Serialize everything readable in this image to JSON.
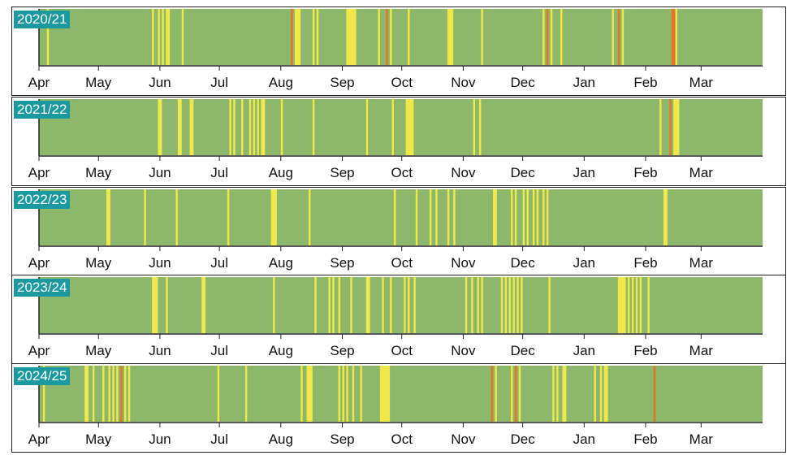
{
  "chart_data": {
    "type": "heatmap",
    "month_labels": [
      "Apr",
      "May",
      "Jun",
      "Jul",
      "Aug",
      "Sep",
      "Oct",
      "Nov",
      "Dec",
      "Jan",
      "Feb",
      "Mar"
    ],
    "colors": {
      "green": "#8db76a",
      "yellow": "#f0e84a",
      "orange": "#e8742a",
      "panel_bg": "#ffffff"
    },
    "panels": [
      {
        "year": "2020/21",
        "events": [
          {
            "day": 4,
            "level": "yellow",
            "days": 1
          },
          {
            "day": 57,
            "level": "yellow",
            "days": 1
          },
          {
            "day": 60,
            "level": "yellow",
            "days": 1
          },
          {
            "day": 62,
            "level": "yellow",
            "days": 1
          },
          {
            "day": 64,
            "level": "yellow",
            "days": 2
          },
          {
            "day": 72,
            "level": "yellow",
            "days": 1
          },
          {
            "day": 127,
            "level": "orange",
            "days": 1
          },
          {
            "day": 129,
            "level": "yellow",
            "days": 3
          },
          {
            "day": 138,
            "level": "yellow",
            "days": 1
          },
          {
            "day": 140,
            "level": "yellow",
            "days": 1
          },
          {
            "day": 155,
            "level": "yellow",
            "days": 5
          },
          {
            "day": 171,
            "level": "yellow",
            "days": 1
          },
          {
            "day": 175,
            "level": "orange",
            "days": 1
          },
          {
            "day": 177,
            "level": "yellow",
            "days": 1
          },
          {
            "day": 186,
            "level": "yellow",
            "days": 1
          },
          {
            "day": 206,
            "level": "yellow",
            "days": 3
          },
          {
            "day": 223,
            "level": "yellow",
            "days": 1
          },
          {
            "day": 254,
            "level": "yellow",
            "days": 1
          },
          {
            "day": 256,
            "level": "orange",
            "days": 1
          },
          {
            "day": 258,
            "level": "yellow",
            "days": 1
          },
          {
            "day": 263,
            "level": "yellow",
            "days": 1
          },
          {
            "day": 289,
            "level": "yellow",
            "days": 1
          },
          {
            "day": 292,
            "level": "orange",
            "days": 1
          },
          {
            "day": 294,
            "level": "yellow",
            "days": 1
          },
          {
            "day": 319,
            "level": "orange",
            "days": 2
          },
          {
            "day": 321,
            "level": "yellow",
            "days": 1
          }
        ]
      },
      {
        "year": "2021/22",
        "events": [
          {
            "day": 60,
            "level": "yellow",
            "days": 2
          },
          {
            "day": 70,
            "level": "yellow",
            "days": 2
          },
          {
            "day": 76,
            "level": "yellow",
            "days": 2
          },
          {
            "day": 96,
            "level": "yellow",
            "days": 1
          },
          {
            "day": 98,
            "level": "yellow",
            "days": 1
          },
          {
            "day": 102,
            "level": "yellow",
            "days": 1
          },
          {
            "day": 106,
            "level": "yellow",
            "days": 1
          },
          {
            "day": 108,
            "level": "yellow",
            "days": 1
          },
          {
            "day": 110,
            "level": "yellow",
            "days": 1
          },
          {
            "day": 112,
            "level": "yellow",
            "days": 2
          },
          {
            "day": 122,
            "level": "yellow",
            "days": 1
          },
          {
            "day": 138,
            "level": "yellow",
            "days": 1
          },
          {
            "day": 165,
            "level": "yellow",
            "days": 1
          },
          {
            "day": 178,
            "level": "yellow",
            "days": 1
          },
          {
            "day": 185,
            "level": "yellow",
            "days": 4
          },
          {
            "day": 219,
            "level": "yellow",
            "days": 1
          },
          {
            "day": 222,
            "level": "yellow",
            "days": 1
          },
          {
            "day": 313,
            "level": "yellow",
            "days": 1
          },
          {
            "day": 318,
            "level": "orange",
            "days": 1
          },
          {
            "day": 320,
            "level": "yellow",
            "days": 3
          }
        ]
      },
      {
        "year": "2022/23",
        "events": [
          {
            "day": 34,
            "level": "yellow",
            "days": 2
          },
          {
            "day": 53,
            "level": "yellow",
            "days": 1
          },
          {
            "day": 69,
            "level": "yellow",
            "days": 1
          },
          {
            "day": 95,
            "level": "yellow",
            "days": 1
          },
          {
            "day": 117,
            "level": "yellow",
            "days": 3
          },
          {
            "day": 136,
            "level": "yellow",
            "days": 1
          },
          {
            "day": 179,
            "level": "yellow",
            "days": 1
          },
          {
            "day": 190,
            "level": "yellow",
            "days": 1
          },
          {
            "day": 197,
            "level": "yellow",
            "days": 1
          },
          {
            "day": 200,
            "level": "yellow",
            "days": 1
          },
          {
            "day": 206,
            "level": "yellow",
            "days": 1
          },
          {
            "day": 209,
            "level": "yellow",
            "days": 1
          },
          {
            "day": 229,
            "level": "yellow",
            "days": 2
          },
          {
            "day": 238,
            "level": "yellow",
            "days": 1
          },
          {
            "day": 240,
            "level": "yellow",
            "days": 1
          },
          {
            "day": 244,
            "level": "yellow",
            "days": 1
          },
          {
            "day": 246,
            "level": "yellow",
            "days": 1
          },
          {
            "day": 249,
            "level": "yellow",
            "days": 1
          },
          {
            "day": 251,
            "level": "yellow",
            "days": 1
          },
          {
            "day": 254,
            "level": "yellow",
            "days": 1
          },
          {
            "day": 256,
            "level": "yellow",
            "days": 1
          },
          {
            "day": 315,
            "level": "yellow",
            "days": 2
          }
        ]
      },
      {
        "year": "2023/24",
        "events": [
          {
            "day": 57,
            "level": "yellow",
            "days": 3
          },
          {
            "day": 64,
            "level": "yellow",
            "days": 1
          },
          {
            "day": 82,
            "level": "yellow",
            "days": 2
          },
          {
            "day": 118,
            "level": "yellow",
            "days": 1
          },
          {
            "day": 139,
            "level": "yellow",
            "days": 1
          },
          {
            "day": 146,
            "level": "yellow",
            "days": 1
          },
          {
            "day": 148,
            "level": "yellow",
            "days": 1
          },
          {
            "day": 151,
            "level": "yellow",
            "days": 1
          },
          {
            "day": 157,
            "level": "yellow",
            "days": 1
          },
          {
            "day": 165,
            "level": "yellow",
            "days": 2
          },
          {
            "day": 173,
            "level": "yellow",
            "days": 1
          },
          {
            "day": 177,
            "level": "yellow",
            "days": 1
          },
          {
            "day": 184,
            "level": "yellow",
            "days": 1
          },
          {
            "day": 186,
            "level": "yellow",
            "days": 1
          },
          {
            "day": 189,
            "level": "yellow",
            "days": 1
          },
          {
            "day": 215,
            "level": "yellow",
            "days": 1
          },
          {
            "day": 218,
            "level": "yellow",
            "days": 1
          },
          {
            "day": 221,
            "level": "yellow",
            "days": 1
          },
          {
            "day": 223,
            "level": "yellow",
            "days": 1
          },
          {
            "day": 233,
            "level": "yellow",
            "days": 1
          },
          {
            "day": 235,
            "level": "yellow",
            "days": 1
          },
          {
            "day": 237,
            "level": "yellow",
            "days": 1
          },
          {
            "day": 239,
            "level": "yellow",
            "days": 1
          },
          {
            "day": 241,
            "level": "yellow",
            "days": 1
          },
          {
            "day": 243,
            "level": "yellow",
            "days": 1
          },
          {
            "day": 257,
            "level": "yellow",
            "days": 1
          },
          {
            "day": 292,
            "level": "yellow",
            "days": 4
          },
          {
            "day": 297,
            "level": "yellow",
            "days": 1
          },
          {
            "day": 299,
            "level": "yellow",
            "days": 1
          },
          {
            "day": 301,
            "level": "yellow",
            "days": 1
          },
          {
            "day": 303,
            "level": "yellow",
            "days": 1
          },
          {
            "day": 307,
            "level": "yellow",
            "days": 1
          }
        ]
      },
      {
        "year": "2024/25",
        "events": [
          {
            "day": 2,
            "level": "yellow",
            "days": 1
          },
          {
            "day": 23,
            "level": "yellow",
            "days": 2
          },
          {
            "day": 27,
            "level": "yellow",
            "days": 1
          },
          {
            "day": 32,
            "level": "yellow",
            "days": 1
          },
          {
            "day": 35,
            "level": "yellow",
            "days": 1
          },
          {
            "day": 37,
            "level": "yellow",
            "days": 1
          },
          {
            "day": 39,
            "level": "yellow",
            "days": 1
          },
          {
            "day": 41,
            "level": "orange",
            "days": 1
          },
          {
            "day": 43,
            "level": "yellow",
            "days": 1
          },
          {
            "day": 45,
            "level": "yellow",
            "days": 1
          },
          {
            "day": 90,
            "level": "yellow",
            "days": 1
          },
          {
            "day": 104,
            "level": "yellow",
            "days": 1
          },
          {
            "day": 132,
            "level": "yellow",
            "days": 1
          },
          {
            "day": 135,
            "level": "yellow",
            "days": 3
          },
          {
            "day": 151,
            "level": "yellow",
            "days": 1
          },
          {
            "day": 153,
            "level": "yellow",
            "days": 1
          },
          {
            "day": 155,
            "level": "yellow",
            "days": 1
          },
          {
            "day": 158,
            "level": "yellow",
            "days": 1
          },
          {
            "day": 162,
            "level": "yellow",
            "days": 1
          },
          {
            "day": 172,
            "level": "yellow",
            "days": 5
          },
          {
            "day": 228,
            "level": "orange",
            "days": 1
          },
          {
            "day": 230,
            "level": "yellow",
            "days": 1
          },
          {
            "day": 238,
            "level": "yellow",
            "days": 1
          },
          {
            "day": 240,
            "level": "orange",
            "days": 1
          },
          {
            "day": 242,
            "level": "yellow",
            "days": 1
          },
          {
            "day": 259,
            "level": "yellow",
            "days": 1
          },
          {
            "day": 261,
            "level": "yellow",
            "days": 1
          },
          {
            "day": 264,
            "level": "yellow",
            "days": 2
          },
          {
            "day": 280,
            "level": "yellow",
            "days": 1
          },
          {
            "day": 283,
            "level": "yellow",
            "days": 1
          },
          {
            "day": 285,
            "level": "yellow",
            "days": 2
          },
          {
            "day": 310,
            "level": "orange",
            "days": 1
          }
        ]
      }
    ]
  }
}
